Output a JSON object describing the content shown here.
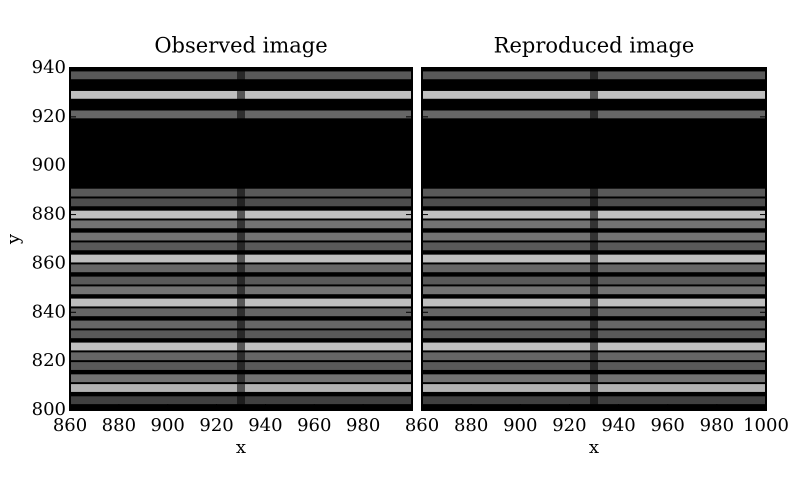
{
  "chart_data": [
    {
      "type": "image",
      "title": "Observed image",
      "xlabel": "x",
      "ylabel": "y",
      "xlim": [
        860,
        1000
      ],
      "ylim": [
        800,
        940
      ],
      "xticks": [
        860,
        880,
        900,
        920,
        940,
        960,
        980
      ],
      "yticks": [
        800,
        820,
        840,
        860,
        880,
        900,
        920,
        940
      ],
      "show_ytick_labels": true,
      "band_y": [
        937,
        929,
        921,
        889,
        885,
        880,
        876,
        871,
        867,
        862,
        858,
        853,
        849,
        844,
        840,
        835,
        831,
        826,
        822,
        818,
        813,
        809,
        804
      ],
      "band_level": [
        0.35,
        0.75,
        0.4,
        0.35,
        0.3,
        0.75,
        0.45,
        0.45,
        0.35,
        0.75,
        0.4,
        0.35,
        0.45,
        0.75,
        0.4,
        0.4,
        0.35,
        0.75,
        0.4,
        0.35,
        0.45,
        0.7,
        0.25
      ],
      "dark_x": [
        930
      ]
    },
    {
      "type": "image",
      "title": "Reproduced image",
      "xlabel": "x",
      "xlim": [
        860,
        1000
      ],
      "ylim": [
        800,
        940
      ],
      "xticks": [
        860,
        880,
        900,
        920,
        940,
        960,
        980,
        1000
      ],
      "yticks": [
        800,
        820,
        840,
        860,
        880,
        900,
        920,
        940
      ],
      "show_ytick_labels": false,
      "band_y": [
        937,
        929,
        921,
        889,
        885,
        880,
        876,
        871,
        867,
        862,
        858,
        853,
        849,
        844,
        840,
        835,
        831,
        826,
        822,
        818,
        813,
        809,
        804
      ],
      "band_level": [
        0.35,
        0.75,
        0.4,
        0.35,
        0.3,
        0.75,
        0.45,
        0.45,
        0.35,
        0.75,
        0.4,
        0.35,
        0.45,
        0.75,
        0.4,
        0.4,
        0.35,
        0.75,
        0.4,
        0.35,
        0.45,
        0.7,
        0.25
      ],
      "dark_x": [
        930
      ]
    }
  ]
}
